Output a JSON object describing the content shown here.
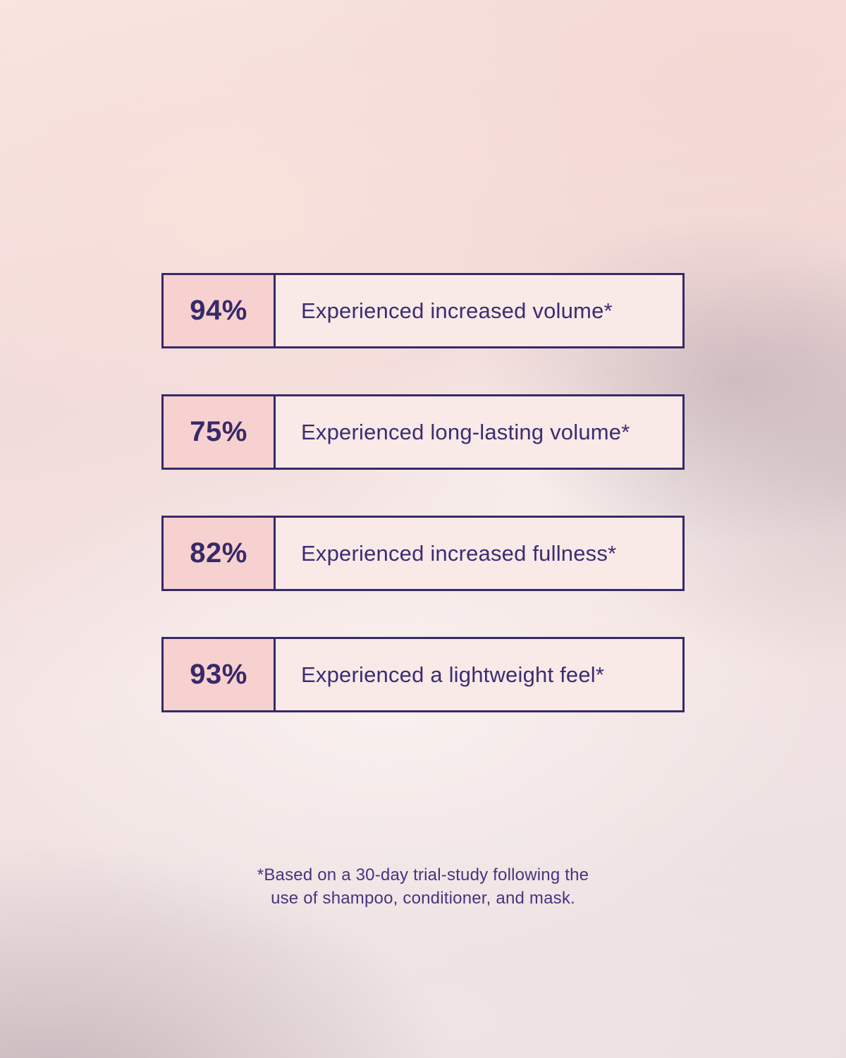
{
  "stats": [
    {
      "percent": "94%",
      "label": "Experienced increased volume*"
    },
    {
      "percent": "75%",
      "label": "Experienced long-lasting volume*"
    },
    {
      "percent": "82%",
      "label": "Experienced increased fullness*"
    },
    {
      "percent": "93%",
      "label": "Experienced a lightweight feel*"
    }
  ],
  "footnote": {
    "line1": "*Based on a 30-day trial-study following the",
    "line2": "use of shampoo, conditioner, and mask."
  },
  "colors": {
    "accent_purple": "#372a6a",
    "label_purple": "#3b2d72",
    "footnote_purple": "#45357f",
    "percent_cell_pink": "#f7d1cf",
    "label_cell_cream": "#f9eae7",
    "background_pink": "#f3dedb"
  },
  "chart_data": {
    "type": "table",
    "title": "",
    "categories": [
      "Experienced increased volume*",
      "Experienced long-lasting volume*",
      "Experienced increased fullness*",
      "Experienced a lightweight feel*"
    ],
    "values": [
      94,
      75,
      82,
      93
    ],
    "value_unit": "%",
    "footnote": "*Based on a 30-day trial-study following the use of shampoo, conditioner, and mask.",
    "layout": "four stacked two-cell stat rows, percentage cell left, description cell right"
  }
}
